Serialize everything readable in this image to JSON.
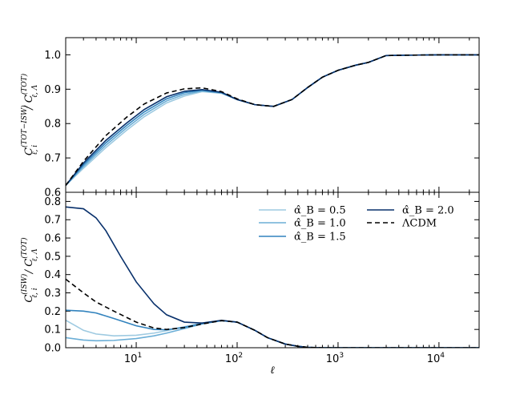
{
  "chart_data": [
    {
      "type": "line",
      "panel": "top",
      "xscale": "log",
      "xlim": [
        2,
        25000
      ],
      "ylim": [
        0.6,
        1.05
      ],
      "ylabel": "C_{ℓ,i}^{(TOT−ISW)} / C_{ℓ,Λ}^{(TOT)}",
      "yticks": [
        "0.6",
        "0.7",
        "0.8",
        "0.9",
        "1.0"
      ],
      "series": [
        {
          "key": "a05",
          "color": "#9ecae1",
          "dashed": false,
          "x": [
            2,
            3,
            5,
            8,
            12,
            20,
            30,
            45,
            70,
            100,
            150,
            230,
            350,
            500,
            700,
            1000,
            1500,
            2000,
            3000,
            5000,
            10000,
            25000
          ],
          "y": [
            0.62,
            0.67,
            0.73,
            0.78,
            0.82,
            0.86,
            0.88,
            0.893,
            0.888,
            0.87,
            0.855,
            0.85,
            0.87,
            0.905,
            0.935,
            0.955,
            0.97,
            0.978,
            0.998,
            0.999,
            1.0,
            1.0
          ]
        },
        {
          "key": "a10",
          "color": "#6baed6",
          "dashed": false,
          "x": [
            2,
            3,
            5,
            8,
            12,
            20,
            30,
            45,
            70,
            100,
            150,
            230,
            350,
            500,
            700,
            1000,
            1500,
            2000,
            3000,
            5000,
            10000,
            25000
          ],
          "y": [
            0.62,
            0.675,
            0.737,
            0.787,
            0.827,
            0.866,
            0.885,
            0.895,
            0.889,
            0.87,
            0.855,
            0.85,
            0.87,
            0.905,
            0.935,
            0.955,
            0.97,
            0.978,
            0.998,
            0.999,
            1.0,
            1.0
          ]
        },
        {
          "key": "a15",
          "color": "#3182bd",
          "dashed": false,
          "x": [
            2,
            3,
            5,
            8,
            12,
            20,
            30,
            45,
            70,
            100,
            150,
            230,
            350,
            500,
            700,
            1000,
            1500,
            2000,
            3000,
            5000,
            10000,
            25000
          ],
          "y": [
            0.62,
            0.68,
            0.744,
            0.794,
            0.834,
            0.872,
            0.89,
            0.897,
            0.89,
            0.87,
            0.855,
            0.85,
            0.87,
            0.905,
            0.935,
            0.955,
            0.97,
            0.978,
            0.998,
            0.999,
            1.0,
            1.0
          ]
        },
        {
          "key": "a20",
          "color": "#08306b",
          "dashed": false,
          "x": [
            2,
            3,
            5,
            8,
            12,
            20,
            30,
            45,
            70,
            100,
            150,
            230,
            350,
            500,
            700,
            1000,
            1500,
            2000,
            3000,
            5000,
            10000,
            25000
          ],
          "y": [
            0.62,
            0.685,
            0.751,
            0.801,
            0.841,
            0.878,
            0.894,
            0.899,
            0.891,
            0.87,
            0.855,
            0.85,
            0.87,
            0.905,
            0.935,
            0.955,
            0.97,
            0.978,
            0.998,
            0.999,
            1.0,
            1.0
          ]
        },
        {
          "key": "lcdm",
          "color": "#000000",
          "dashed": true,
          "x": [
            2,
            3,
            5,
            8,
            12,
            20,
            30,
            45,
            70,
            100,
            150,
            230,
            350,
            500,
            700,
            1000,
            1500,
            2000,
            3000,
            5000,
            10000,
            25000
          ],
          "y": [
            0.62,
            0.69,
            0.765,
            0.818,
            0.857,
            0.889,
            0.901,
            0.904,
            0.893,
            0.872,
            0.855,
            0.85,
            0.87,
            0.905,
            0.935,
            0.955,
            0.97,
            0.978,
            0.998,
            0.999,
            1.0,
            1.0
          ]
        }
      ]
    },
    {
      "type": "line",
      "panel": "bottom",
      "xscale": "log",
      "xlim": [
        2,
        25000
      ],
      "ylim": [
        0.0,
        0.85
      ],
      "xlabel": "ℓ",
      "ylabel": "C_{ℓ,i}^{(ISW)} / C_{ℓ,Λ}^{(TOT)}",
      "xticks": [
        {
          "value": 10,
          "label": "10"
        },
        {
          "value": 100,
          "label": "10"
        },
        {
          "value": 1000,
          "label": "10"
        },
        {
          "value": 10000,
          "label": "10"
        }
      ],
      "xtick_exponents": [
        "1",
        "2",
        "3",
        "4"
      ],
      "yticks": [
        "0.0",
        "0.1",
        "0.2",
        "0.3",
        "0.4",
        "0.5",
        "0.6",
        "0.7",
        "0.8"
      ],
      "legend": {
        "placement": "top-right",
        "entries": [
          {
            "key": "a05",
            "label": "α̂_B = 0.5"
          },
          {
            "key": "a10",
            "label": "α̂_B = 1.0"
          },
          {
            "key": "a15",
            "label": "α̂_B = 1.5"
          },
          {
            "key": "a20",
            "label": "α̂_B = 2.0"
          },
          {
            "key": "lcdm",
            "label": "ΛCDM"
          }
        ]
      },
      "series": [
        {
          "key": "a05",
          "color": "#9ecae1",
          "dashed": false,
          "x": [
            2,
            2.5,
            3,
            4,
            6,
            10,
            15,
            20,
            30,
            45,
            70,
            100,
            150,
            200,
            300,
            400,
            500,
            700,
            1000,
            25000
          ],
          "y": [
            0.15,
            0.12,
            0.095,
            0.075,
            0.065,
            0.068,
            0.08,
            0.093,
            0.115,
            0.135,
            0.148,
            0.14,
            0.095,
            0.055,
            0.02,
            0.008,
            0.002,
            0.0,
            0.0,
            0.0
          ]
        },
        {
          "key": "a10",
          "color": "#6baed6",
          "dashed": false,
          "x": [
            2,
            3,
            4,
            6,
            10,
            15,
            20,
            30,
            45,
            70,
            100,
            150,
            200,
            300,
            400,
            500,
            700,
            1000,
            25000
          ],
          "y": [
            0.055,
            0.042,
            0.038,
            0.04,
            0.05,
            0.065,
            0.08,
            0.105,
            0.13,
            0.148,
            0.14,
            0.095,
            0.055,
            0.02,
            0.008,
            0.002,
            0.0,
            0.0,
            0.0
          ]
        },
        {
          "key": "a15",
          "color": "#3182bd",
          "dashed": false,
          "x": [
            2,
            3,
            4,
            6,
            10,
            15,
            20,
            30,
            45,
            70,
            100,
            150,
            200,
            300,
            400,
            500,
            700,
            1000,
            25000
          ],
          "y": [
            0.205,
            0.2,
            0.19,
            0.16,
            0.12,
            0.1,
            0.098,
            0.112,
            0.132,
            0.148,
            0.14,
            0.095,
            0.055,
            0.02,
            0.008,
            0.002,
            0.0,
            0.0,
            0.0
          ]
        },
        {
          "key": "a20",
          "color": "#08306b",
          "dashed": false,
          "x": [
            2,
            3,
            4,
            5,
            7,
            10,
            15,
            20,
            30,
            45,
            70,
            100,
            150,
            200,
            300,
            400,
            500,
            700,
            1000,
            25000
          ],
          "y": [
            0.77,
            0.76,
            0.71,
            0.64,
            0.5,
            0.36,
            0.24,
            0.18,
            0.14,
            0.135,
            0.15,
            0.14,
            0.095,
            0.055,
            0.02,
            0.008,
            0.002,
            0.0,
            0.0,
            0.0
          ]
        },
        {
          "key": "lcdm",
          "color": "#000000",
          "dashed": true,
          "x": [
            2,
            3,
            4,
            6,
            10,
            15,
            20,
            30,
            45,
            70,
            100,
            150,
            200,
            300,
            400,
            500,
            700,
            1000,
            25000
          ],
          "y": [
            0.375,
            0.3,
            0.25,
            0.2,
            0.14,
            0.108,
            0.1,
            0.11,
            0.13,
            0.148,
            0.14,
            0.095,
            0.055,
            0.02,
            0.008,
            0.002,
            0.0,
            0.0,
            0.0
          ]
        }
      ]
    }
  ]
}
